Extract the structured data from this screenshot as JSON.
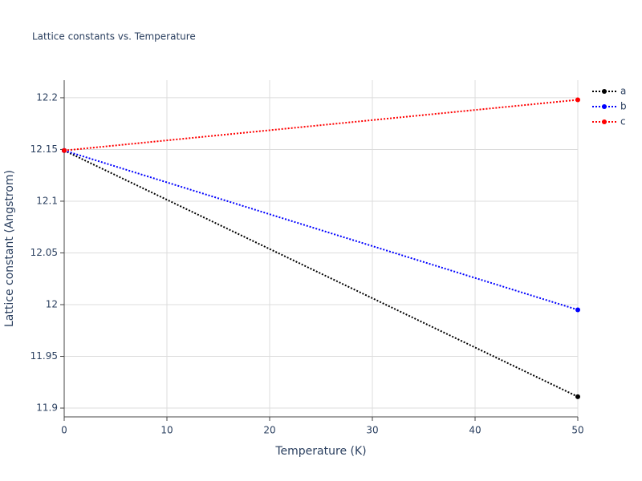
{
  "chart_data": {
    "type": "line",
    "title": "Lattice constants vs. Temperature",
    "x_label": "Temperature (K)",
    "y_label": "Lattice constant (Angstrom)",
    "x": [
      0,
      50
    ],
    "series": [
      {
        "name": "a",
        "color": "#000000",
        "values": [
          12.149,
          11.911
        ]
      },
      {
        "name": "b",
        "color": "#0000ff",
        "values": [
          12.149,
          11.995
        ]
      },
      {
        "name": "c",
        "color": "#ff0000",
        "values": [
          12.149,
          12.198
        ]
      }
    ],
    "xlim": [
      0,
      50
    ],
    "xticks": [
      0,
      10,
      20,
      30,
      40,
      50
    ],
    "ylim": [
      11.8915,
      12.217
    ],
    "yticks": [
      11.9,
      11.95,
      12,
      12.05,
      12.1,
      12.15,
      12.2
    ],
    "grid": true,
    "legend": "top-right"
  }
}
